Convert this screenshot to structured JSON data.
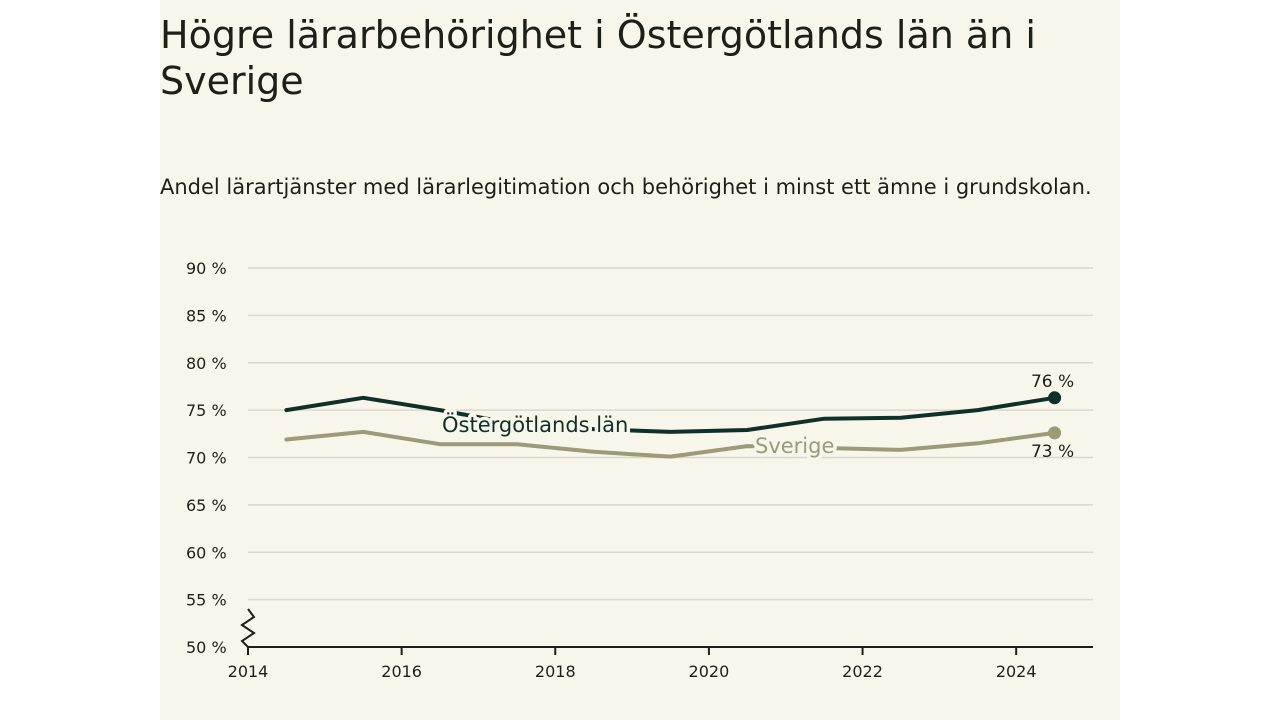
{
  "colors": {
    "panel": "#f8f6ea",
    "ostergotland": "#0f3029",
    "sverige": "#9c9a77",
    "grid": "#d9d8cf",
    "axis": "#1f1f1a"
  },
  "chart_data": {
    "type": "line",
    "title": "Högre lärarbehörighet i Östergötlands län än i Sverige",
    "subtitle": "Andel lärartjänster med lärarlegitimation och behörighet i minst ett ämne i grundskolan.",
    "xlim": [
      2014,
      2025
    ],
    "ylim": [
      50,
      90
    ],
    "y_ticks": [
      90,
      85,
      80,
      75,
      70,
      65,
      60,
      55,
      50
    ],
    "y_tick_labels": [
      "90 %",
      "85 %",
      "80 %",
      "75 %",
      "70 %",
      "65 %",
      "60 %",
      "55 %",
      "50 %"
    ],
    "x_ticks": [
      2014,
      2016,
      2018,
      2020,
      2022,
      2024
    ],
    "x_tick_labels": [
      "2014",
      "2016",
      "2018",
      "2020",
      "2022",
      "2024"
    ],
    "grid": true,
    "axis_break": true,
    "series": [
      {
        "name": "Östergötlands län",
        "x": [
          2014.5,
          2015.5,
          2016.5,
          2017.5,
          2018.5,
          2019.5,
          2020.5,
          2021.5,
          2022.5,
          2023.5,
          2024.5
        ],
        "values": [
          75.0,
          76.3,
          75.0,
          73.5,
          73.0,
          72.7,
          72.9,
          74.1,
          74.2,
          75.0,
          76.3
        ],
        "end_label": "76 %"
      },
      {
        "name": "Sverige",
        "x": [
          2014.5,
          2015.5,
          2016.5,
          2017.5,
          2018.5,
          2019.5,
          2020.5,
          2021.5,
          2022.5,
          2023.5,
          2024.5
        ],
        "values": [
          71.9,
          72.7,
          71.4,
          71.4,
          70.6,
          70.1,
          71.2,
          71.0,
          70.8,
          71.5,
          72.6
        ],
        "end_label": "73 %"
      }
    ]
  }
}
